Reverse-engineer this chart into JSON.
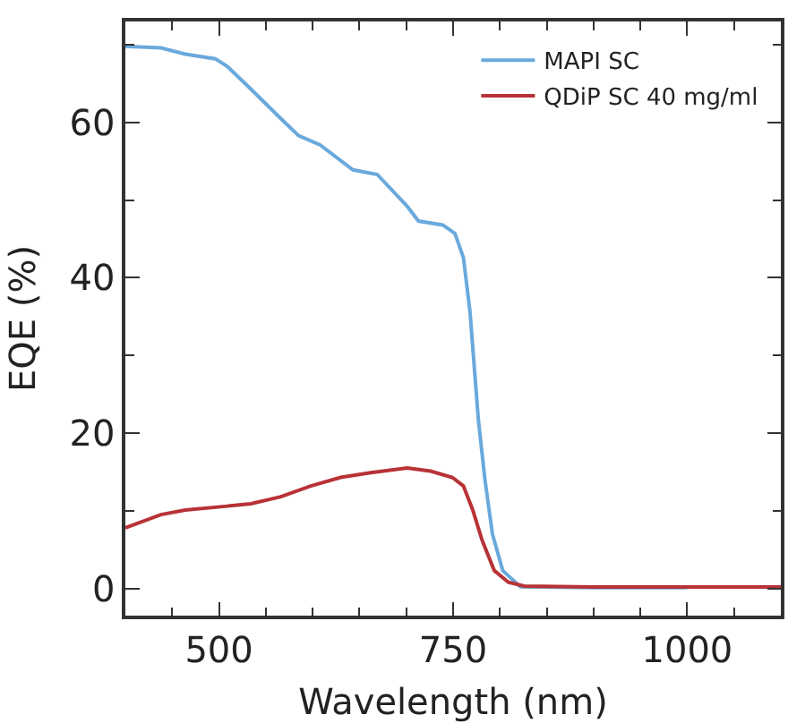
{
  "chart_data": {
    "type": "line",
    "xlabel": "Wavelength (nm)",
    "ylabel": "EQE (%)",
    "xlim": [
      400,
      1100
    ],
    "ylim": [
      -3.5,
      73
    ],
    "xticks": [
      500,
      750,
      1000
    ],
    "yticks": [
      0,
      20,
      40,
      60
    ],
    "grid": false,
    "legend": "top right",
    "marker": "none",
    "line_style": "solid",
    "series": [
      {
        "name": "MAPI SC",
        "color": "#6aa9dc",
        "x": [
          400,
          438,
          464,
          496,
          509,
          534,
          566,
          585,
          608,
          643,
          669,
          701,
          713,
          739,
          752,
          761,
          768,
          772,
          777,
          784,
          792,
          803,
          822,
          900,
          1000
        ],
        "values": [
          69.8,
          69.6,
          68.8,
          68.2,
          67.2,
          64.3,
          60.5,
          58.3,
          57.1,
          53.9,
          53.3,
          49.2,
          47.3,
          46.8,
          45.7,
          42.6,
          35.7,
          29.5,
          21.7,
          14,
          7,
          2.3,
          0.2,
          0.1,
          0.1
        ]
      },
      {
        "name": "QDiP SC 40 mg/ml",
        "color": "#b83236",
        "x": [
          400,
          438,
          464,
          509,
          534,
          566,
          598,
          630,
          662,
          701,
          726,
          749,
          761,
          771,
          781,
          794,
          809,
          826,
          900,
          1000,
          1100
        ],
        "values": [
          7.8,
          9.5,
          10.1,
          10.6,
          10.9,
          11.8,
          13.2,
          14.3,
          14.9,
          15.5,
          15.1,
          14.3,
          13.2,
          10.1,
          6.2,
          2.3,
          0.8,
          0.3,
          0.2,
          0.2,
          0.2
        ]
      }
    ]
  }
}
